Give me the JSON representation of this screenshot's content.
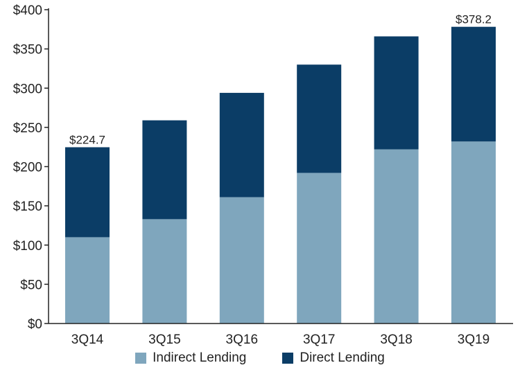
{
  "chart_data": {
    "type": "bar",
    "stacked": true,
    "categories": [
      "3Q14",
      "3Q15",
      "3Q16",
      "3Q17",
      "3Q18",
      "3Q19"
    ],
    "series": [
      {
        "name": "Indirect Lending",
        "color": "#7fa6bd",
        "values": [
          110,
          133,
          161,
          192,
          222,
          232
        ]
      },
      {
        "name": "Direct Lending",
        "color": "#0b3d66",
        "values": [
          114.7,
          126,
          133,
          138,
          144,
          146.2
        ]
      }
    ],
    "totals_labels": [
      {
        "category": "3Q14",
        "text": "$224.7"
      },
      {
        "category": "3Q19",
        "text": "$378.2"
      }
    ],
    "ylim": [
      0,
      400
    ],
    "yticks": [
      0,
      50,
      100,
      150,
      200,
      250,
      300,
      350,
      400
    ],
    "ytick_labels": [
      "$0",
      "$50",
      "$100",
      "$150",
      "$200",
      "$250",
      "$300",
      "$350",
      "$400"
    ],
    "grid": false,
    "legend_position": "bottom"
  }
}
